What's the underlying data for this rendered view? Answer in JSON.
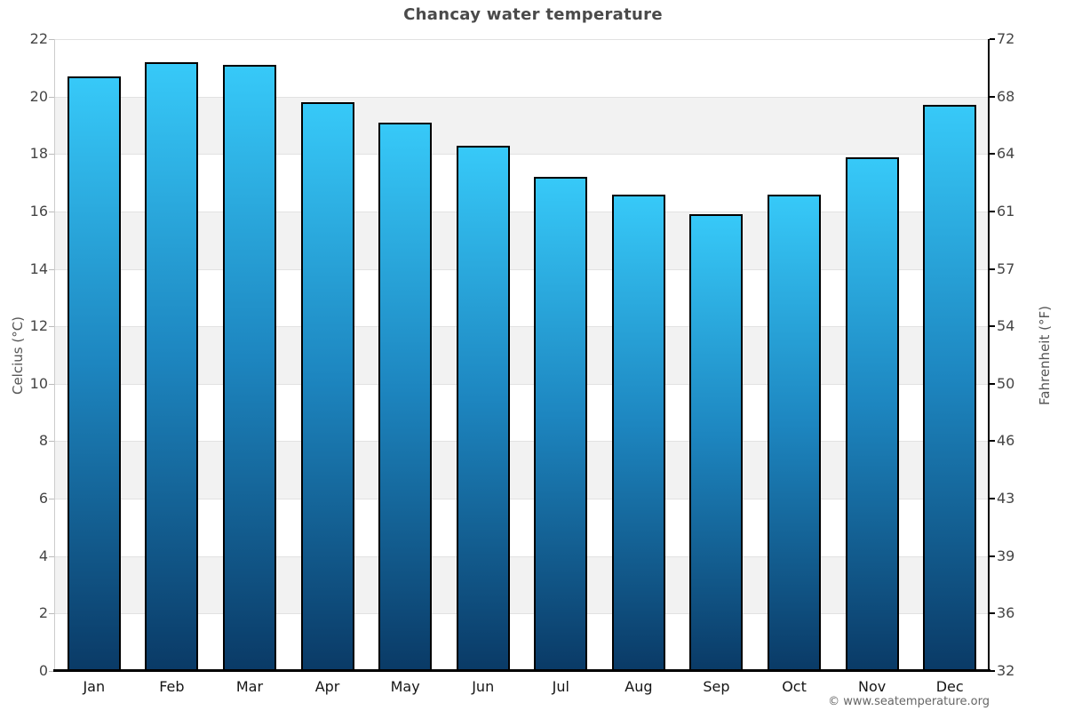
{
  "watermark": "© www.seatemperature.org",
  "colors": {
    "bar_gradient_top": "#37c9f8",
    "bar_gradient_mid": "#1d86c0",
    "bar_gradient_bottom": "#0a3a66",
    "bar_border": "#000000",
    "band_gray": "#f2f2f2",
    "gridline": "#e2e2e2",
    "left_axis": "#cccccc",
    "right_axis": "#000000",
    "title_text": "#4a4a4a",
    "tick_text": "#454545"
  },
  "chart_data": {
    "type": "bar",
    "title": "Chancay water temperature",
    "categories": [
      "Jan",
      "Feb",
      "Mar",
      "Apr",
      "May",
      "Jun",
      "Jul",
      "Aug",
      "Sep",
      "Oct",
      "Nov",
      "Dec"
    ],
    "series": [
      {
        "name": "Water temperature (°C)",
        "values": [
          20.7,
          21.2,
          21.1,
          19.8,
          19.1,
          18.3,
          17.2,
          16.6,
          15.9,
          16.6,
          17.9,
          19.7
        ]
      }
    ],
    "ylabel_left": "Celcius (°C)",
    "ylabel_right": "Fahrenheit (°F)",
    "yticks_celsius": [
      0,
      2,
      4,
      6,
      8,
      10,
      12,
      14,
      16,
      18,
      20,
      22
    ],
    "yticks_fahrenheit": [
      32,
      36,
      39,
      43,
      46,
      50,
      54,
      57,
      61,
      64,
      68,
      72
    ],
    "ylim": [
      0,
      22
    ],
    "grid": "alternating horizontal gray bands every 2°C",
    "legend_position": "none",
    "xlabel": ""
  }
}
